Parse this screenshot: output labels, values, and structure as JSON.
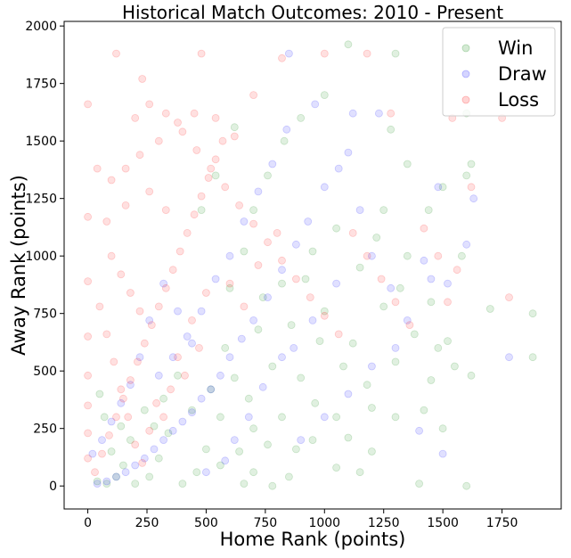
{
  "chart_data": {
    "type": "scatter",
    "title": "Historical Match Outcomes: 2010 - Present",
    "xlabel": "Home Rank (points)",
    "ylabel": "Away Rank (points)",
    "xlim": [
      -100,
      2000
    ],
    "ylim": [
      -100,
      2020
    ],
    "xticks": [
      0,
      250,
      500,
      750,
      1000,
      1250,
      1500,
      1750
    ],
    "yticks": [
      0,
      250,
      500,
      750,
      1000,
      1250,
      1500,
      1750,
      2000
    ],
    "grid": false,
    "legend_position": "top-right",
    "marker_alpha": 0.12,
    "series": [
      {
        "name": "Win",
        "color": "#008000",
        "points": [
          [
            1880,
            560
          ],
          [
            1880,
            750
          ],
          [
            1100,
            1920
          ],
          [
            1600,
            1620
          ],
          [
            1700,
            770
          ],
          [
            1620,
            1400
          ],
          [
            1500,
            1300
          ],
          [
            1580,
            1000
          ],
          [
            1450,
            460
          ],
          [
            1600,
            0
          ],
          [
            1400,
            10
          ],
          [
            1440,
            1200
          ],
          [
            1550,
            520
          ],
          [
            1500,
            250
          ],
          [
            1300,
            1880
          ],
          [
            1600,
            1350
          ],
          [
            1280,
            1550
          ],
          [
            1350,
            1400
          ],
          [
            1250,
            780
          ],
          [
            1300,
            540
          ],
          [
            1200,
            340
          ],
          [
            1100,
            210
          ],
          [
            1050,
            80
          ],
          [
            980,
            630
          ],
          [
            900,
            470
          ],
          [
            820,
            300
          ],
          [
            760,
            180
          ],
          [
            700,
            60
          ],
          [
            660,
            10
          ],
          [
            820,
            880
          ],
          [
            950,
            1020
          ],
          [
            1050,
            1120
          ],
          [
            1150,
            950
          ],
          [
            1220,
            1080
          ],
          [
            1320,
            860
          ],
          [
            1380,
            660
          ],
          [
            1420,
            330
          ],
          [
            1180,
            440
          ],
          [
            1080,
            520
          ],
          [
            960,
            360
          ],
          [
            880,
            160
          ],
          [
            780,
            520
          ],
          [
            720,
            680
          ],
          [
            620,
            470
          ],
          [
            560,
            300
          ],
          [
            500,
            160
          ],
          [
            460,
            60
          ],
          [
            400,
            10
          ],
          [
            340,
            230
          ],
          [
            300,
            120
          ],
          [
            260,
            40
          ],
          [
            200,
            10
          ],
          [
            150,
            90
          ],
          [
            120,
            40
          ],
          [
            80,
            10
          ],
          [
            40,
            20
          ],
          [
            600,
            860
          ],
          [
            660,
            1020
          ],
          [
            700,
            1200
          ],
          [
            760,
            1350
          ],
          [
            830,
            1500
          ],
          [
            900,
            1600
          ],
          [
            620,
            1560
          ],
          [
            540,
            1350
          ],
          [
            480,
            1200
          ],
          [
            1000,
            1700
          ],
          [
            1250,
            1200
          ],
          [
            1350,
            1000
          ],
          [
            1450,
            800
          ],
          [
            1520,
            630
          ],
          [
            1620,
            480
          ],
          [
            1480,
            600
          ],
          [
            1300,
            300
          ],
          [
            1200,
            150
          ],
          [
            1120,
            620
          ],
          [
            1000,
            760
          ],
          [
            920,
            900
          ],
          [
            860,
            700
          ],
          [
            740,
            820
          ],
          [
            680,
            380
          ],
          [
            580,
            600
          ],
          [
            520,
            420
          ],
          [
            440,
            330
          ],
          [
            380,
            480
          ],
          [
            320,
            380
          ],
          [
            280,
            260
          ],
          [
            240,
            330
          ],
          [
            180,
            200
          ],
          [
            140,
            260
          ],
          [
            100,
            150
          ],
          [
            70,
            300
          ],
          [
            50,
            400
          ],
          [
            1050,
            300
          ],
          [
            1150,
            60
          ],
          [
            950,
            200
          ],
          [
            850,
            40
          ],
          [
            780,
            0
          ],
          [
            700,
            250
          ],
          [
            640,
            150
          ],
          [
            560,
            90
          ]
        ]
      },
      {
        "name": "Draw",
        "color": "#0000ff",
        "points": [
          [
            1780,
            560
          ],
          [
            1630,
            1250
          ],
          [
            1600,
            1050
          ],
          [
            1520,
            880
          ],
          [
            1450,
            900
          ],
          [
            1420,
            980
          ],
          [
            1480,
            1300
          ],
          [
            1400,
            240
          ],
          [
            1500,
            140
          ],
          [
            1300,
            600
          ],
          [
            1230,
            1620
          ],
          [
            1120,
            1620
          ],
          [
            850,
            1880
          ],
          [
            1100,
            1450
          ],
          [
            1000,
            1300
          ],
          [
            930,
            1150
          ],
          [
            880,
            1050
          ],
          [
            820,
            940
          ],
          [
            760,
            820
          ],
          [
            700,
            720
          ],
          [
            650,
            640
          ],
          [
            600,
            560
          ],
          [
            560,
            480
          ],
          [
            520,
            420
          ],
          [
            480,
            380
          ],
          [
            440,
            320
          ],
          [
            400,
            280
          ],
          [
            360,
            240
          ],
          [
            320,
            200
          ],
          [
            280,
            160
          ],
          [
            240,
            120
          ],
          [
            200,
            90
          ],
          [
            160,
            60
          ],
          [
            120,
            40
          ],
          [
            80,
            20
          ],
          [
            40,
            10
          ],
          [
            300,
            480
          ],
          [
            360,
            560
          ],
          [
            420,
            650
          ],
          [
            480,
            760
          ],
          [
            540,
            900
          ],
          [
            600,
            1000
          ],
          [
            660,
            1150
          ],
          [
            720,
            1280
          ],
          [
            780,
            1400
          ],
          [
            840,
            1550
          ],
          [
            960,
            1660
          ],
          [
            1060,
            1380
          ],
          [
            1150,
            1200
          ],
          [
            1200,
            1000
          ],
          [
            1280,
            860
          ],
          [
            1350,
            720
          ],
          [
            1200,
            520
          ],
          [
            1100,
            400
          ],
          [
            1000,
            300
          ],
          [
            900,
            200
          ],
          [
            820,
            560
          ],
          [
            740,
            430
          ],
          [
            680,
            300
          ],
          [
            620,
            200
          ],
          [
            580,
            110
          ],
          [
            500,
            60
          ],
          [
            440,
            620
          ],
          [
            380,
            760
          ],
          [
            320,
            880
          ],
          [
            260,
            720
          ],
          [
            220,
            560
          ],
          [
            180,
            440
          ],
          [
            140,
            360
          ],
          [
            100,
            280
          ],
          [
            60,
            200
          ],
          [
            20,
            140
          ],
          [
            1050,
            880
          ],
          [
            950,
            720
          ],
          [
            870,
            600
          ]
        ]
      },
      {
        "name": "Loss",
        "color": "#ff0000",
        "points": [
          [
            0,
            1660
          ],
          [
            120,
            1880
          ],
          [
            230,
            1770
          ],
          [
            480,
            1880
          ],
          [
            1180,
            1880
          ],
          [
            1750,
            1600
          ],
          [
            1780,
            820
          ],
          [
            1620,
            1300
          ],
          [
            1540,
            1600
          ],
          [
            1280,
            1620
          ],
          [
            1000,
            1880
          ],
          [
            820,
            1860
          ],
          [
            700,
            1700
          ],
          [
            620,
            1520
          ],
          [
            540,
            1600
          ],
          [
            450,
            1620
          ],
          [
            380,
            1580
          ],
          [
            300,
            1500
          ],
          [
            220,
            1440
          ],
          [
            160,
            1380
          ],
          [
            100,
            1330
          ],
          [
            40,
            1380
          ],
          [
            0,
            1170
          ],
          [
            0,
            890
          ],
          [
            0,
            650
          ],
          [
            0,
            480
          ],
          [
            0,
            350
          ],
          [
            0,
            230
          ],
          [
            0,
            120
          ],
          [
            30,
            60
          ],
          [
            60,
            140
          ],
          [
            90,
            220
          ],
          [
            120,
            300
          ],
          [
            150,
            380
          ],
          [
            180,
            460
          ],
          [
            210,
            540
          ],
          [
            240,
            620
          ],
          [
            270,
            700
          ],
          [
            300,
            780
          ],
          [
            330,
            860
          ],
          [
            360,
            940
          ],
          [
            390,
            1020
          ],
          [
            420,
            1100
          ],
          [
            450,
            1180
          ],
          [
            480,
            1260
          ],
          [
            510,
            1340
          ],
          [
            540,
            1420
          ],
          [
            570,
            1500
          ],
          [
            200,
            1600
          ],
          [
            260,
            1660
          ],
          [
            330,
            1620
          ],
          [
            400,
            1540
          ],
          [
            460,
            1460
          ],
          [
            520,
            1380
          ],
          [
            580,
            1300
          ],
          [
            640,
            1220
          ],
          [
            700,
            1140
          ],
          [
            760,
            1060
          ],
          [
            820,
            980
          ],
          [
            880,
            900
          ],
          [
            940,
            820
          ],
          [
            1000,
            740
          ],
          [
            1060,
            660
          ],
          [
            1120,
            1100
          ],
          [
            1180,
            1000
          ],
          [
            1240,
            900
          ],
          [
            1300,
            800
          ],
          [
            1360,
            700
          ],
          [
            1420,
            1120
          ],
          [
            1480,
            1000
          ],
          [
            1560,
            940
          ],
          [
            1520,
            800
          ],
          [
            100,
            1000
          ],
          [
            140,
            920
          ],
          [
            180,
            840
          ],
          [
            220,
            760
          ],
          [
            50,
            780
          ],
          [
            80,
            660
          ],
          [
            110,
            540
          ],
          [
            140,
            420
          ],
          [
            170,
            300
          ],
          [
            200,
            180
          ],
          [
            230,
            100
          ],
          [
            260,
            240
          ],
          [
            290,
            360
          ],
          [
            320,
            300
          ],
          [
            350,
            420
          ],
          [
            380,
            560
          ],
          [
            410,
            480
          ],
          [
            440,
            720
          ],
          [
            470,
            600
          ],
          [
            500,
            840
          ],
          [
            80,
            1150
          ],
          [
            160,
            1220
          ],
          [
            260,
            1280
          ],
          [
            330,
            1200
          ],
          [
            600,
            880
          ],
          [
            660,
            780
          ],
          [
            720,
            960
          ],
          [
            800,
            1100
          ]
        ]
      }
    ]
  }
}
